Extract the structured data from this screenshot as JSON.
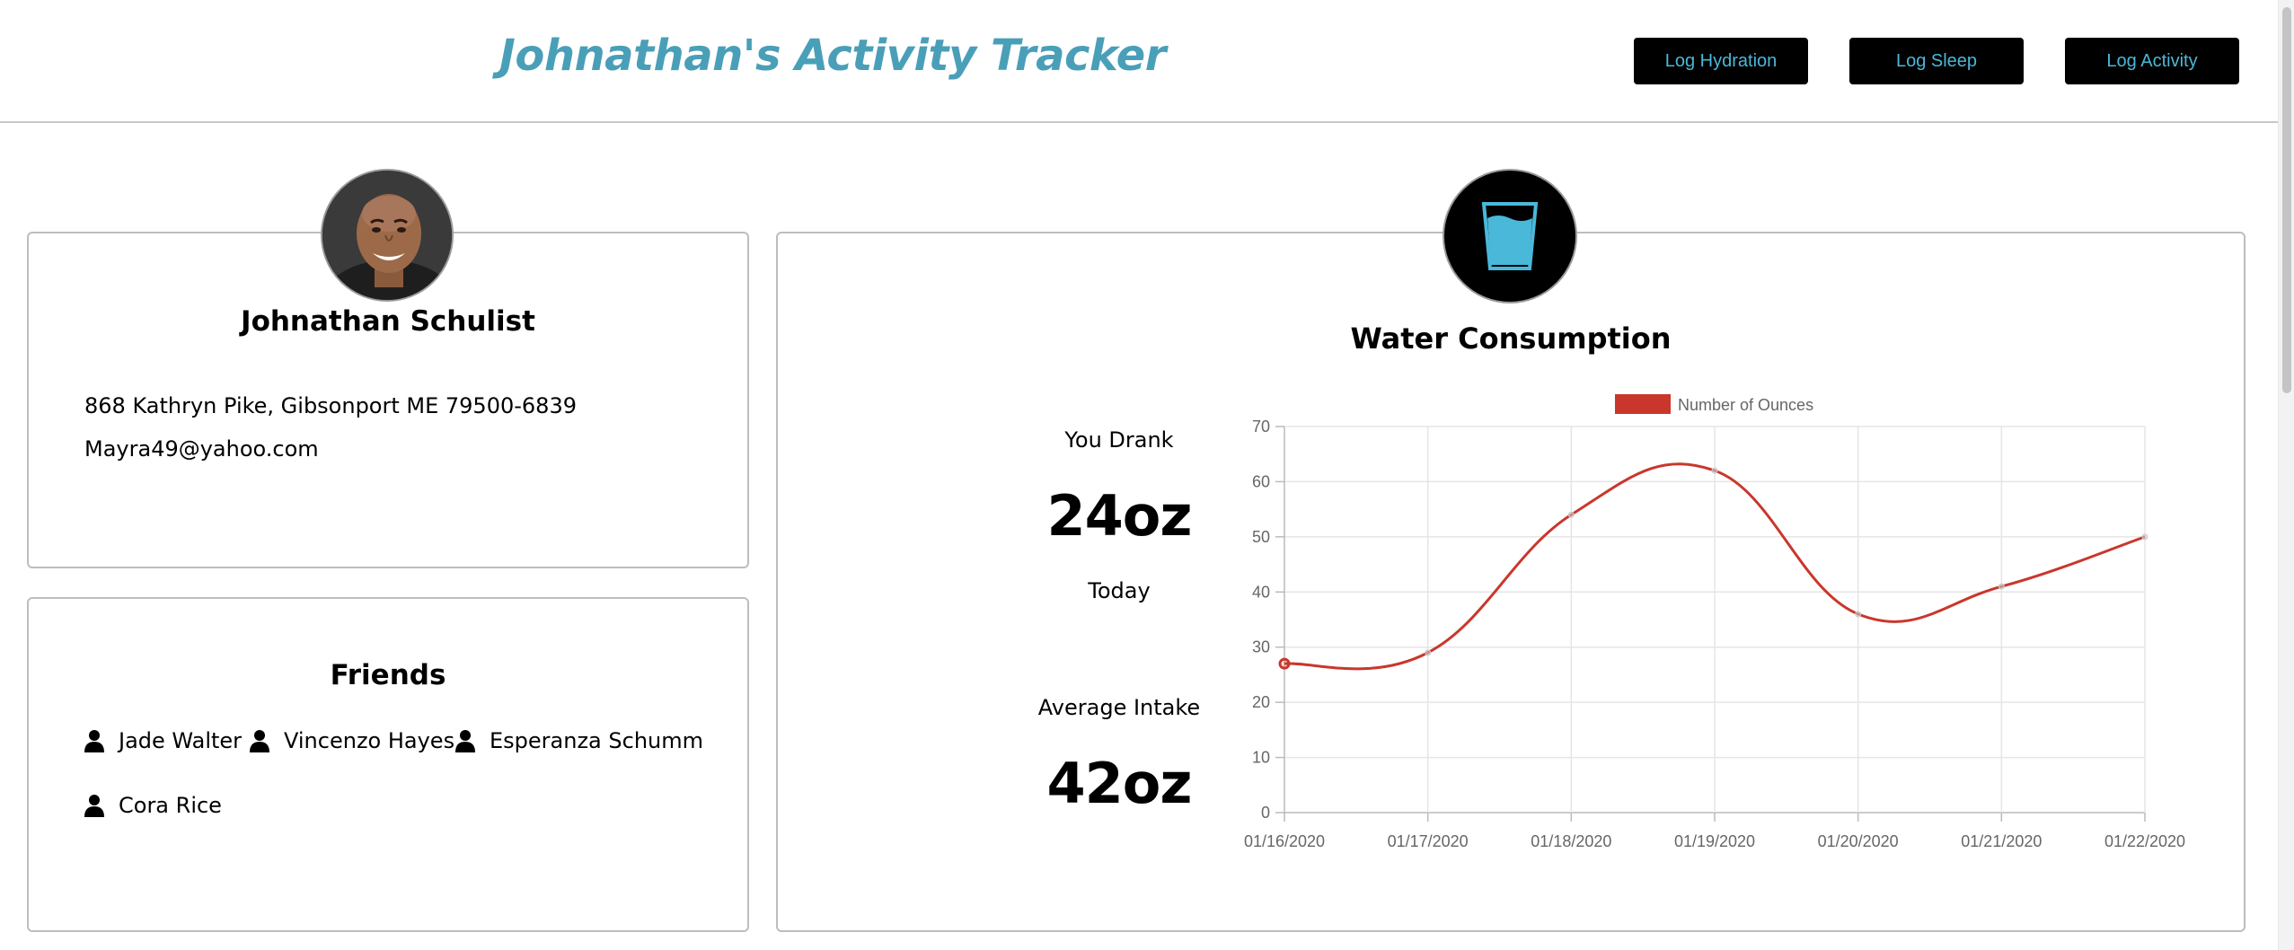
{
  "header": {
    "title": "Johnathan's Activity Tracker",
    "buttons": {
      "log_hydration": "Log Hydration",
      "log_sleep": "Log Sleep",
      "log_activity": "Log Activity"
    }
  },
  "profile": {
    "name": "Johnathan Schulist",
    "address": "868 Kathryn Pike, Gibsonport ME 79500-6839",
    "email": "Mayra49@yahoo.com"
  },
  "friends": {
    "title": "Friends",
    "list": [
      "Jade Walter",
      "Vincenzo Hayes",
      "Esperanza Schumm",
      "Cora Rice"
    ]
  },
  "water": {
    "title": "Water Consumption",
    "today_label": "You Drank",
    "today_value": "24oz",
    "today_suffix": "Today",
    "average_label": "Average Intake",
    "average_value": "42oz"
  },
  "colors": {
    "accent_title": "#4a9fb8",
    "button_text": "#4ab8d9",
    "chart_line": "#c9372c",
    "water_glass": "#4ab8d9"
  },
  "icons": {
    "friend": "person-icon",
    "water": "water-glass-icon",
    "avatar": "user-avatar"
  },
  "chart_data": {
    "type": "line",
    "categories": [
      "01/16/2020",
      "01/17/2020",
      "01/18/2020",
      "01/19/2020",
      "01/20/2020",
      "01/21/2020",
      "01/22/2020"
    ],
    "series": [
      {
        "name": "Number of Ounces",
        "values": [
          27,
          29,
          54,
          62,
          36,
          41,
          50
        ]
      }
    ],
    "ylim": [
      0,
      70
    ],
    "yticks": [
      0,
      10,
      20,
      30,
      40,
      50,
      60,
      70
    ],
    "grid": true,
    "legend": "top-center",
    "smooth": true
  }
}
